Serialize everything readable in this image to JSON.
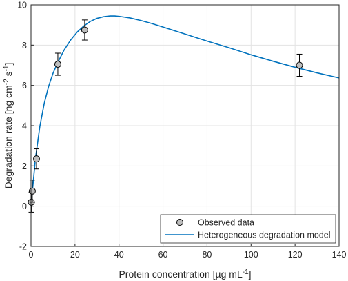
{
  "chart_data": {
    "type": "scatter",
    "title": "",
    "xlabel": "Protein concentration [µg mL",
    "xlabel_sup": "-1",
    "xlabel_end": "]",
    "ylabel_parts": [
      "Degradation rate [ng cm",
      "-2",
      " s",
      "-1",
      "]"
    ],
    "xlim": [
      0,
      140
    ],
    "ylim": [
      -2,
      10
    ],
    "xticks": [
      0,
      20,
      40,
      60,
      80,
      100,
      120,
      140
    ],
    "yticks": [
      -2,
      0,
      2,
      4,
      6,
      8,
      10
    ],
    "grid": true,
    "legend_position": "bottom-right",
    "series": [
      {
        "name": "Observed data",
        "kind": "points",
        "color": "#bdbdbd",
        "points": [
          {
            "x": 0.15,
            "y": 0.2,
            "err": 0.5
          },
          {
            "x": 0.6,
            "y": 0.75,
            "err": 0.55
          },
          {
            "x": 2.5,
            "y": 2.35,
            "err": 0.5
          },
          {
            "x": 12.2,
            "y": 7.05,
            "err": 0.55
          },
          {
            "x": 24.4,
            "y": 8.75,
            "err": 0.5
          },
          {
            "x": 122,
            "y": 7.0,
            "err": 0.55
          }
        ]
      },
      {
        "name": "Heterogeneous degradation model",
        "kind": "line",
        "color": "#0072bd",
        "points": [
          [
            0,
            0
          ],
          [
            2,
            2.35
          ],
          [
            4,
            3.95
          ],
          [
            6,
            5.1
          ],
          [
            8,
            5.95
          ],
          [
            10,
            6.6
          ],
          [
            12,
            7.1
          ],
          [
            15,
            7.75
          ],
          [
            18,
            8.25
          ],
          [
            21,
            8.65
          ],
          [
            24,
            8.95
          ],
          [
            27,
            9.18
          ],
          [
            30,
            9.33
          ],
          [
            33,
            9.41
          ],
          [
            36,
            9.45
          ],
          [
            38,
            9.45
          ],
          [
            40,
            9.43
          ],
          [
            45,
            9.35
          ],
          [
            50,
            9.22
          ],
          [
            55,
            9.07
          ],
          [
            60,
            8.9
          ],
          [
            70,
            8.55
          ],
          [
            80,
            8.2
          ],
          [
            90,
            7.87
          ],
          [
            100,
            7.52
          ],
          [
            110,
            7.2
          ],
          [
            120,
            6.9
          ],
          [
            130,
            6.62
          ],
          [
            140,
            6.37
          ]
        ]
      }
    ]
  }
}
